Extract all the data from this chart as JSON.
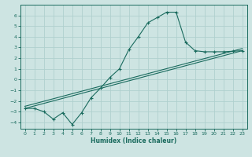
{
  "xlabel": "Humidex (Indice chaleur)",
  "ylabel": "",
  "xlim": [
    -0.5,
    23.5
  ],
  "ylim": [
    -4.6,
    7.0
  ],
  "yticks": [
    -4,
    -3,
    -2,
    -1,
    0,
    1,
    2,
    3,
    4,
    5,
    6
  ],
  "xticks": [
    0,
    1,
    2,
    3,
    4,
    5,
    6,
    7,
    8,
    9,
    10,
    11,
    12,
    13,
    14,
    15,
    16,
    17,
    18,
    19,
    20,
    21,
    22,
    23
  ],
  "bg_color": "#cde4e2",
  "grid_color": "#b0d0ce",
  "line_color": "#1a6b5e",
  "line1_x": [
    0,
    1,
    2,
    3,
    4,
    5,
    6,
    7,
    8,
    9,
    10,
    11,
    12,
    13,
    14,
    15,
    16,
    17,
    18,
    19,
    20,
    21,
    22,
    23
  ],
  "line1_y": [
    -2.7,
    -2.7,
    -3.0,
    -3.7,
    -3.1,
    -4.2,
    -3.1,
    -1.7,
    -0.8,
    0.2,
    1.0,
    2.8,
    4.0,
    5.3,
    5.8,
    6.3,
    6.3,
    3.5,
    2.7,
    2.6,
    2.6,
    2.6,
    2.65,
    2.7
  ],
  "line2_x": [
    0,
    23
  ],
  "line2_y": [
    -2.7,
    2.7
  ],
  "line3_x": [
    0,
    23
  ],
  "line3_y": [
    -2.7,
    2.7
  ]
}
